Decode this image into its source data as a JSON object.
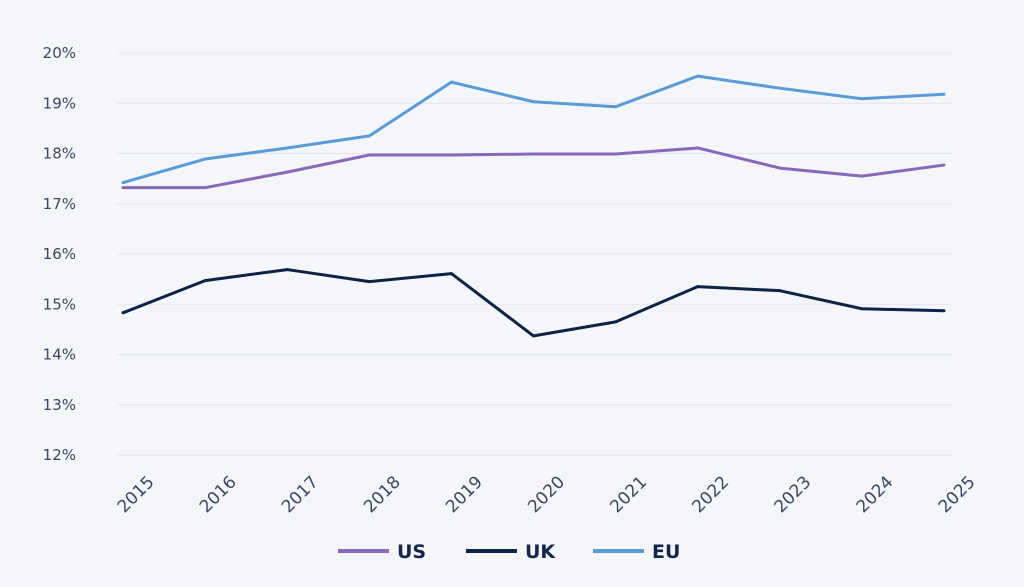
{
  "chart_data": {
    "type": "line",
    "title": "",
    "xlabel": "",
    "ylabel": "",
    "x": [
      "2015",
      "2016",
      "2017",
      "2018",
      "2019",
      "2020",
      "2021",
      "2022",
      "2023",
      "2024",
      "2025"
    ],
    "ylim": [
      12,
      20
    ],
    "yticks": [
      "12%",
      "13%",
      "14%",
      "15%",
      "16%",
      "17%",
      "18%",
      "19%",
      "20%"
    ],
    "grid": "horizontal",
    "legend_position": "bottom",
    "series": [
      {
        "name": "US",
        "color": "#8a68b8",
        "values": [
          17.32,
          17.32,
          17.63,
          17.97,
          17.97,
          17.99,
          17.99,
          18.11,
          17.71,
          17.55,
          17.77
        ]
      },
      {
        "name": "UK",
        "color": "#0c2348",
        "values": [
          14.83,
          15.47,
          15.69,
          15.45,
          15.61,
          14.37,
          14.65,
          15.35,
          15.27,
          14.91,
          14.87
        ]
      },
      {
        "name": "EU",
        "color": "#5b9bd5",
        "values": [
          17.42,
          17.89,
          18.11,
          18.35,
          19.42,
          19.03,
          18.93,
          19.54,
          19.3,
          19.09,
          19.18
        ]
      }
    ]
  }
}
